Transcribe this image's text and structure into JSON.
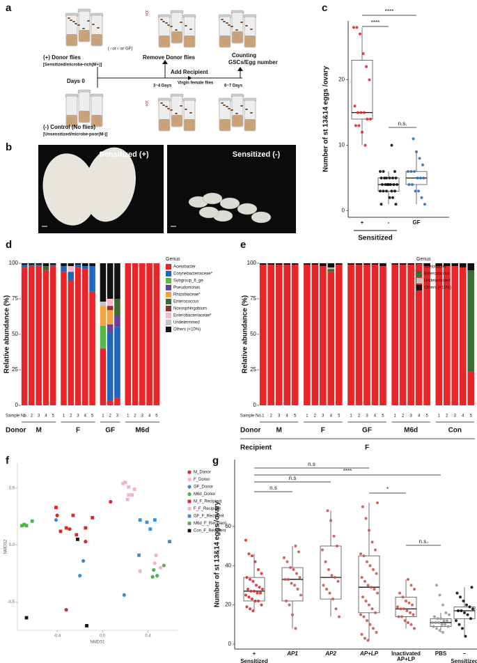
{
  "panel_labels": [
    "a",
    "b",
    "c",
    "d",
    "e",
    "f",
    "g"
  ],
  "diagram": {
    "donor_sex": "(♂or♀ or GF)",
    "female_symbol": "☿",
    "donor": "(+) Donor flies",
    "donor_note": "[Sensitized/microbe-rich(M+)]",
    "remove": "Remove Donor flies",
    "counting": "Counting",
    "counting_note": "GSCs/Egg number",
    "add": "Add Recipient",
    "recipient_note": "Virgin female flies",
    "day0": "Days 0",
    "day34": "3~4 Days",
    "day67": "6~7 Days",
    "control": "(-) Control (No flies)",
    "control_note": "[Unsensitized/microbe-poor(M-)]"
  },
  "photos": {
    "left": "Sensitized (+)",
    "right": "Sensitized (-)"
  },
  "chart_data": [
    {
      "type": "box",
      "ylabel": "Number of st 13&14 eggs /ovary",
      "categories": [
        "+",
        "-",
        "GF"
      ],
      "group_label": "Sensitized",
      "colors": [
        "#e0262b",
        "#111111",
        "#2f6fbd"
      ],
      "ylim": [
        -1,
        29
      ],
      "yticks": [
        0,
        10,
        20
      ],
      "boxes": [
        {
          "min": 10,
          "q1": 14,
          "median": 15,
          "q3": 23,
          "max": 28,
          "points": [
            28,
            28,
            27,
            24,
            22,
            20,
            16,
            15,
            15,
            15,
            14,
            14,
            13,
            13,
            12,
            10
          ]
        },
        {
          "min": 1,
          "q1": 3,
          "median": 4,
          "q3": 5,
          "max": 6,
          "points": [
            10,
            6,
            6,
            6,
            5,
            5,
            5,
            5,
            5,
            5,
            4,
            4,
            4,
            4,
            4,
            4,
            4,
            3,
            3,
            3,
            3,
            3,
            2,
            2,
            1,
            1
          ]
        },
        {
          "min": 1,
          "q1": 4,
          "median": 5,
          "q3": 6,
          "max": 9,
          "points": [
            11,
            9,
            8,
            7,
            6,
            6,
            6,
            5,
            5,
            5,
            4,
            4,
            3,
            3,
            2,
            1
          ]
        }
      ],
      "significance": [
        "****",
        "****",
        "n.s."
      ]
    },
    {
      "type": "stacked_bar",
      "ylabel": "Relative abundance (%)",
      "ylim": [
        0,
        100
      ],
      "yticks": [
        0,
        25,
        50,
        75,
        100
      ],
      "sample_label": "Sample No.",
      "donor_label": "Donor",
      "legend_title": "Genus",
      "groups": [
        {
          "name": "M",
          "samples": [
            1,
            2,
            3,
            4,
            5
          ]
        },
        {
          "name": "F",
          "samples": [
            1,
            2,
            3,
            4,
            5
          ]
        },
        {
          "name": "GF",
          "samples": [
            1,
            2,
            3
          ]
        },
        {
          "name": "M6d",
          "samples": [
            1,
            2,
            3,
            4,
            5
          ]
        }
      ],
      "series": [
        {
          "name": "Acetobacter",
          "color": "#e8262a",
          "values": [
            97,
            98,
            98,
            95,
            98,
            94,
            88,
            97,
            96,
            80,
            40,
            3,
            5,
            100,
            100,
            100,
            100,
            100
          ]
        },
        {
          "name": "Corynebacteriaceae*",
          "color": "#2166b8",
          "values": [
            2,
            1,
            1,
            0,
            1,
            4,
            6,
            2,
            2,
            18,
            0,
            48,
            50,
            0,
            0,
            0,
            0,
            0
          ]
        },
        {
          "name": "Subgroup_6_ge",
          "color": "#58b947",
          "values": [
            0,
            0,
            0,
            0,
            0,
            0,
            0,
            0,
            0,
            0,
            16,
            0,
            0,
            0,
            0,
            0,
            0,
            0
          ]
        },
        {
          "name": "Pseudomonas",
          "color": "#6d3f9c",
          "values": [
            0,
            0,
            0,
            0,
            0,
            0,
            0,
            0,
            0,
            0,
            0,
            6,
            8,
            0,
            0,
            0,
            0,
            0
          ]
        },
        {
          "name": "Rhizobiaceae*",
          "color": "#f6a23c",
          "values": [
            0,
            0,
            0,
            0,
            0,
            0,
            0,
            0,
            0,
            0,
            14,
            10,
            0,
            0,
            0,
            0,
            0,
            0
          ]
        },
        {
          "name": "Enterococcus",
          "color": "#3d6b34",
          "values": [
            0,
            0,
            0,
            3,
            0,
            0,
            0,
            0,
            0,
            0,
            0,
            0,
            12,
            0,
            0,
            0,
            0,
            0
          ]
        },
        {
          "name": "Novosphingobium",
          "color": "#8e3030",
          "values": [
            0,
            0,
            0,
            0,
            0,
            0,
            0,
            0,
            0,
            0,
            0,
            3,
            0,
            0,
            0,
            0,
            0,
            0
          ]
        },
        {
          "name": "Enterobacteriaceae*",
          "color": "#f7b8c8",
          "values": [
            0,
            0,
            0,
            0,
            0,
            0,
            4,
            0,
            0,
            0,
            0,
            5,
            0,
            0,
            0,
            0,
            0,
            0
          ]
        },
        {
          "name": "Undetermined",
          "color": "#c4c4c4",
          "values": [
            0,
            0,
            0,
            0,
            0,
            0,
            0,
            0,
            0,
            0,
            3,
            0,
            0,
            0,
            0,
            0,
            0,
            0
          ]
        },
        {
          "name": "Others (<10%)",
          "color": "#111111",
          "values": [
            1,
            1,
            1,
            2,
            1,
            2,
            2,
            1,
            2,
            2,
            27,
            25,
            25,
            0,
            0,
            0,
            0,
            0
          ]
        }
      ]
    },
    {
      "type": "stacked_bar",
      "ylabel": "Relative abundance (%)",
      "ylim": [
        0,
        100
      ],
      "yticks": [
        0,
        25,
        50,
        75,
        100
      ],
      "sample_label": "Sample No.",
      "donor_label": "Donor",
      "legend_title": "Genus",
      "recipient_label": "Recipient",
      "recipient": "F",
      "groups": [
        {
          "name": "M",
          "samples": [
            1,
            2,
            3,
            4,
            5
          ]
        },
        {
          "name": "F",
          "samples": [
            1,
            2,
            3,
            4,
            5
          ]
        },
        {
          "name": "GF",
          "samples": [
            1,
            2,
            3,
            4,
            5
          ]
        },
        {
          "name": "M6d",
          "samples": [
            1,
            2,
            3,
            4,
            5
          ]
        },
        {
          "name": "Con",
          "samples": [
            1,
            2,
            3,
            4,
            5
          ]
        }
      ],
      "series": [
        {
          "name": "Acetobacter",
          "color": "#e8262a",
          "values": [
            99,
            99,
            99,
            99,
            99,
            99,
            99,
            98,
            94,
            99,
            99,
            99,
            99,
            99,
            98,
            99,
            99,
            99,
            99,
            98,
            98,
            98,
            98,
            97,
            24
          ]
        },
        {
          "name": "Enterococcus",
          "color": "#3d6b34",
          "values": [
            0,
            0,
            0,
            0,
            0,
            0,
            0,
            0,
            2,
            0,
            0,
            0,
            0,
            0,
            0,
            0,
            0,
            0,
            0,
            0,
            0,
            0,
            0,
            0,
            71
          ]
        },
        {
          "name": "Undetermined",
          "color": "#c4c4c4",
          "values": [
            0,
            0,
            0,
            0,
            0,
            0,
            0,
            0,
            1,
            0,
            0,
            0,
            0,
            0,
            0,
            0,
            0,
            0,
            0,
            0,
            0,
            0,
            0,
            0,
            0
          ]
        },
        {
          "name": "Others (<10%)",
          "color": "#111111",
          "values": [
            1,
            1,
            1,
            1,
            1,
            1,
            1,
            2,
            3,
            1,
            1,
            1,
            1,
            1,
            2,
            1,
            1,
            1,
            1,
            2,
            2,
            2,
            2,
            3,
            5
          ]
        }
      ]
    },
    {
      "type": "scatter",
      "xlabel": "NMDS1",
      "ylabel": "NMDS2",
      "xlim": [
        -0.75,
        0.66
      ],
      "ylim": [
        -0.75,
        0.72
      ],
      "xticks": [
        -0.4,
        {
          "value": 0,
          "label": "0.0"
        },
        0.4
      ],
      "yticks": [
        -0.5,
        {
          "value": 0,
          "label": "0.0"
        },
        0.5
      ],
      "series": [
        {
          "name": "M_Donor",
          "color": "#e0262b",
          "marker": "circle",
          "x": [
            0.07,
            -0.4,
            -0.29,
            -0.15,
            -0.32
          ],
          "y": [
            0.38,
            0.26,
            0.14,
            0.03,
            -0.57
          ]
        },
        {
          "name": "F_Donor",
          "color": "#f4b3c2",
          "marker": "circle",
          "x": [
            0.18,
            0.47,
            0.46,
            0.51,
            0.33
          ],
          "y": [
            0.54,
            -0.09,
            -0.16,
            -0.2,
            -0.23
          ]
        },
        {
          "name": "GF_Donor",
          "color": "#3a8fd4",
          "marker": "circle",
          "x": [
            -0.41,
            -0.17,
            -0.2,
            0.19
          ],
          "y": [
            0.22,
            -0.14,
            -0.27,
            -0.44
          ]
        },
        {
          "name": "M6d_Donor",
          "color": "#4db34d",
          "marker": "circle",
          "x": [
            0.45,
            0.54,
            0.44,
            0.48
          ],
          "y": [
            -0.22,
            -0.18,
            -0.28,
            -0.27
          ]
        },
        {
          "name": "M_F_Recipient",
          "color": "#e0262b",
          "marker": "square",
          "x": [
            -0.41,
            -0.37,
            -0.32,
            -0.23,
            -0.15,
            -0.09,
            -0.26
          ],
          "y": [
            0.33,
            0.12,
            0.15,
            0.09,
            0.15,
            0.24,
            0.26
          ]
        },
        {
          "name": "F_F_Recipient",
          "color": "#f4b3c2",
          "marker": "square",
          "x": [
            0.2,
            0.23,
            0.23,
            0.26,
            0.22,
            0.28
          ],
          "y": [
            0.55,
            0.51,
            0.44,
            0.44,
            0.4,
            0.49
          ]
        },
        {
          "name": "GF_F_Recipient",
          "color": "#3a8fd4",
          "marker": "square",
          "x": [
            0.33,
            0.46,
            0.39,
            0.42,
            0.59,
            0.32
          ],
          "y": [
            0.22,
            0.22,
            0.2,
            0.14,
            0.03,
            -0.09
          ]
        },
        {
          "name": "M6d_F_Recipient",
          "color": "#4db34d",
          "marker": "square",
          "x": [
            -0.69,
            -0.67,
            -0.62,
            -0.71
          ],
          "y": [
            0.18,
            0.17,
            0.21,
            0.17
          ]
        },
        {
          "name": "Con_F_Recipient",
          "color": "#111111",
          "marker": "square",
          "x": [
            -0.22,
            -0.67,
            -0.14
          ],
          "y": [
            0.05,
            -0.64,
            -0.71
          ]
        }
      ]
    },
    {
      "type": "box",
      "ylabel": "Number of st 13&14 eggs /ovary",
      "categories": [
        "+",
        "AP1",
        "AP2",
        "AP+LP",
        "Inactivated AP+LP",
        "PBS",
        "–"
      ],
      "sublabel": "Sensitized",
      "colors": [
        "#e0262b",
        "#c9564c",
        "#c9564c",
        "#c9564c",
        "#c9564c",
        "#9a9a9a",
        "#111111"
      ],
      "ylim": [
        -2.5,
        94
      ],
      "yticks": [
        0,
        20,
        40,
        60
      ],
      "boxes": [
        {
          "min": 17,
          "q1": 22,
          "median": 27,
          "q3": 34,
          "max": 46,
          "points": [
            53,
            46,
            45,
            42,
            38,
            36,
            34,
            33,
            32,
            30,
            29,
            28,
            28,
            27,
            27,
            26,
            26,
            25,
            24,
            23,
            22,
            22,
            20,
            19,
            18,
            17
          ]
        },
        {
          "min": 8,
          "q1": 22,
          "median": 33,
          "q3": 39,
          "max": 50,
          "points": [
            50,
            47,
            44,
            42,
            39,
            38,
            36,
            34,
            33,
            33,
            31,
            30,
            28,
            25,
            22,
            20,
            15,
            8
          ]
        },
        {
          "min": 14,
          "q1": 23,
          "median": 34,
          "q3": 50,
          "max": 68,
          "points": [
            68,
            63,
            55,
            50,
            48,
            42,
            38,
            35,
            34,
            32,
            30,
            28,
            26,
            23,
            18,
            14
          ]
        },
        {
          "min": 2,
          "q1": 16,
          "median": 29,
          "q3": 45,
          "max": 72,
          "points": [
            72,
            70,
            64,
            58,
            52,
            48,
            46,
            45,
            42,
            40,
            38,
            36,
            34,
            32,
            30,
            29,
            28,
            26,
            24,
            22,
            20,
            18,
            16,
            15,
            14,
            12,
            10,
            8,
            6,
            5,
            3,
            2
          ]
        },
        {
          "min": 8,
          "q1": 14,
          "median": 18,
          "q3": 24,
          "max": 33,
          "points": [
            33,
            30,
            28,
            26,
            24,
            22,
            21,
            20,
            19,
            18,
            18,
            17,
            16,
            15,
            14,
            14,
            12,
            11,
            10,
            8
          ]
        },
        {
          "min": 6,
          "q1": 9,
          "median": 11,
          "q3": 13,
          "max": 16,
          "points": [
            30,
            25,
            20,
            16,
            15,
            14,
            13,
            13,
            12,
            12,
            11,
            11,
            11,
            10,
            10,
            9,
            9,
            8,
            7,
            6
          ]
        },
        {
          "min": 4,
          "q1": 13,
          "median": 17,
          "q3": 19,
          "max": 29,
          "points": [
            29,
            26,
            24,
            22,
            20,
            19,
            18,
            17,
            17,
            16,
            15,
            13,
            12,
            10,
            8,
            4
          ]
        }
      ],
      "significance": [
        "n.s",
        "****",
        "n.s",
        "n.s",
        "*",
        "n.s."
      ]
    }
  ]
}
